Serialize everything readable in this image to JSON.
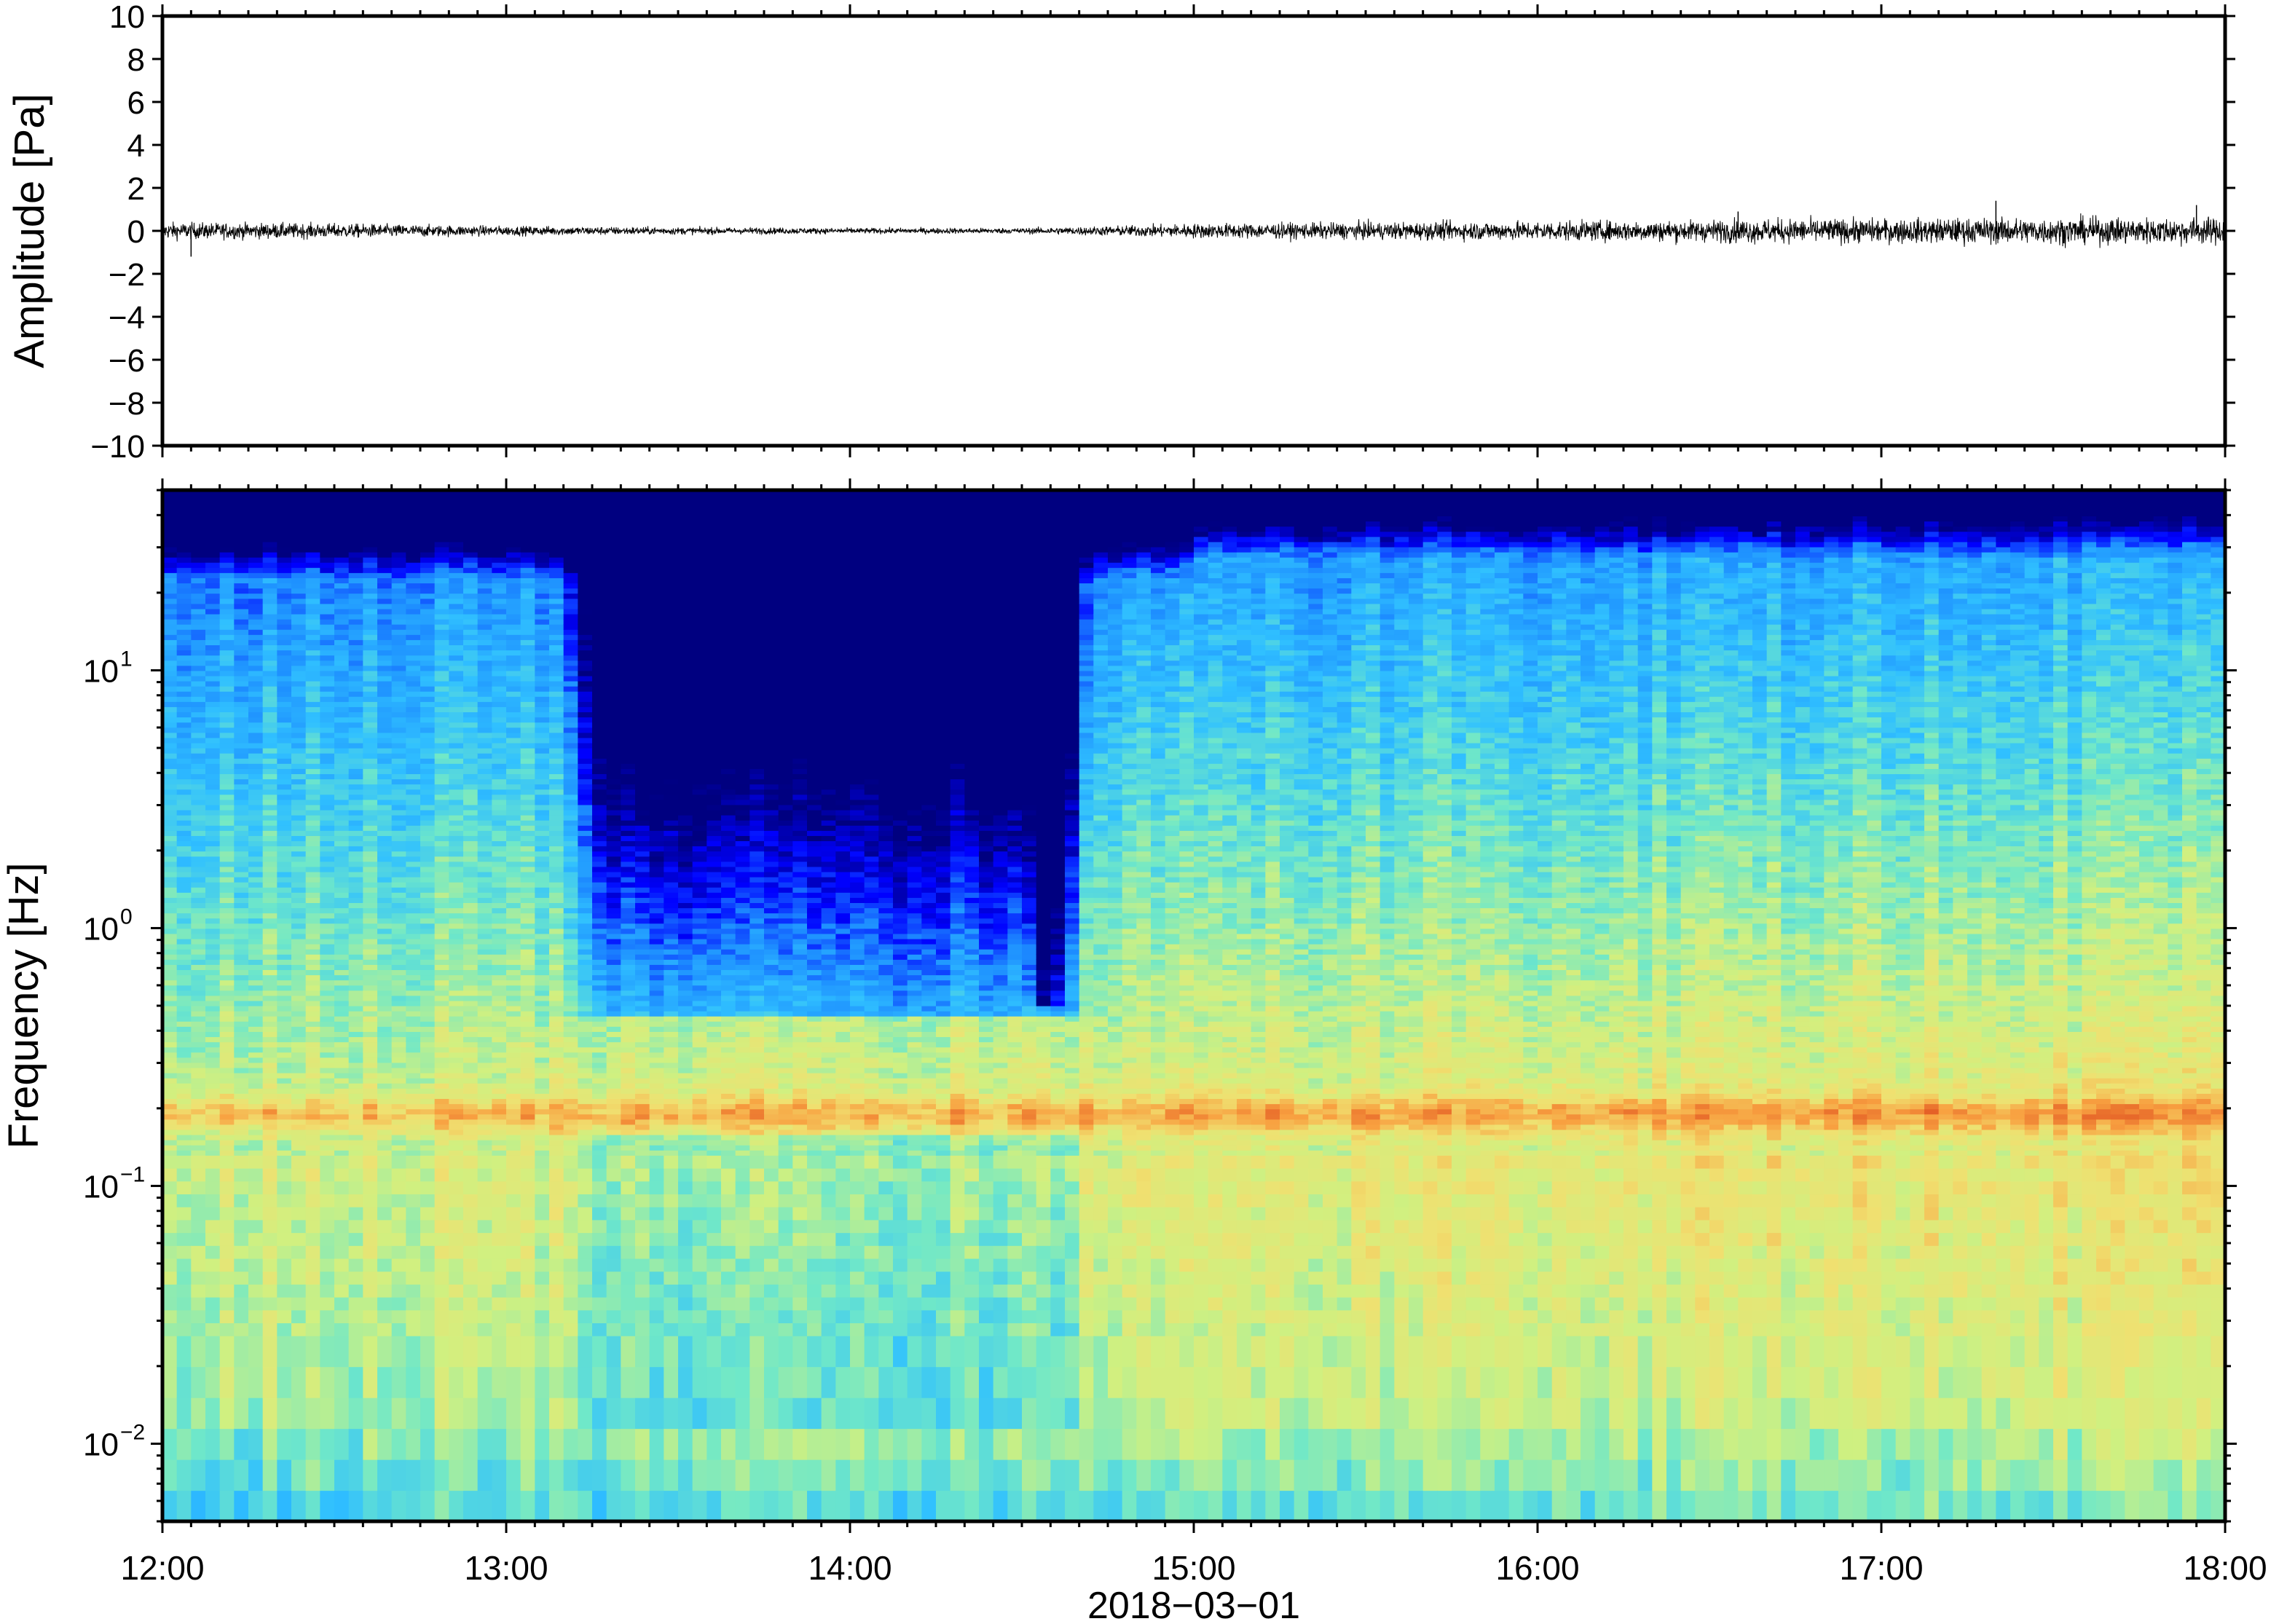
{
  "chart_data": [
    {
      "type": "line",
      "panel": "waveform",
      "ylabel": "Amplitude [Pa]",
      "ylim": [
        -10,
        10
      ],
      "yticks": [
        10,
        8,
        6,
        4,
        2,
        0,
        -2,
        -4,
        -6,
        -8,
        -10
      ],
      "ytick_labels": [
        "10",
        "8",
        "6",
        "4",
        "2",
        "0",
        "−2",
        "−4",
        "−6",
        "−8",
        "−10"
      ],
      "xlim": [
        "12:00",
        "18:00"
      ],
      "series": [
        {
          "color": "#000000",
          "x_hours": [
            12.0,
            12.5,
            13.0,
            13.5,
            14.0,
            14.5,
            14.75,
            15.0,
            15.5,
            16.0,
            16.5,
            16.6,
            17.0,
            17.5,
            18.0
          ],
          "envelope_pa": [
            0.35,
            0.3,
            0.2,
            0.15,
            0.12,
            0.12,
            0.2,
            0.3,
            0.35,
            0.4,
            0.45,
            0.5,
            0.5,
            0.55,
            0.55
          ]
        }
      ],
      "spikes": [
        {
          "x": "12:05",
          "y": -1.2
        },
        {
          "x": "16:35",
          "y": 0.9
        },
        {
          "x": "17:20",
          "y": 1.4
        },
        {
          "x": "17:55",
          "y": 1.2
        }
      ],
      "grid": false
    },
    {
      "type": "heatmap",
      "panel": "spectrogram",
      "ylabel": "Frequency [Hz]",
      "yscale": "log",
      "ylim": [
        0.005,
        50
      ],
      "yticks": [
        0.01,
        0.1,
        1,
        10
      ],
      "ytick_labels": [
        {
          "base": "10",
          "exp": "−2"
        },
        {
          "base": "10",
          "exp": "−1"
        },
        {
          "base": "10",
          "exp": "0"
        },
        {
          "base": "10",
          "exp": "1"
        }
      ],
      "xlabel": "2018−03−01",
      "xlim": [
        "12:00",
        "18:00"
      ],
      "xtick_labels": [
        "12:00",
        "13:00",
        "14:00",
        "15:00",
        "16:00",
        "17:00",
        "18:00"
      ],
      "colormap": [
        "#000080",
        "#0000ff",
        "#1e90ff",
        "#30c0ff",
        "#70e8c8",
        "#d0f080",
        "#f0e070",
        "#f8a040",
        "#e05020"
      ],
      "features": [
        {
          "description_hz": 0.19,
          "from": "12:00",
          "to": "18:00",
          "level": "high"
        },
        {
          "quiet_interval_from": "13:15",
          "quiet_interval_to": "14:40",
          "min_freq_hz": 0.5
        },
        {
          "dip_at": "14:35",
          "min_freq_hz": 0.5
        }
      ],
      "grid": false
    }
  ]
}
